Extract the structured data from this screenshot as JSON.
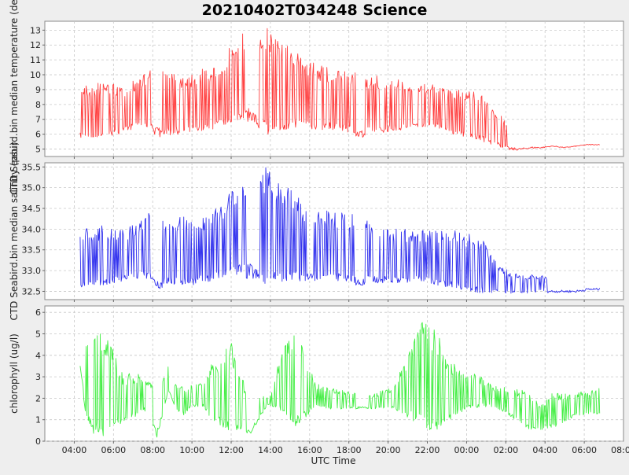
{
  "chart_data": {
    "type": "line",
    "title": "20210402T034248 Science",
    "xlabel": "UTC Time",
    "x_unit": "hours since 00:00 of first day",
    "xlim": [
      2.5,
      32.0
    ],
    "x_ticks": [
      4,
      6,
      8,
      10,
      12,
      14,
      16,
      18,
      20,
      22,
      24,
      26,
      28,
      30,
      32
    ],
    "x_tick_labels": [
      "04:00",
      "06:00",
      "08:00",
      "10:00",
      "12:00",
      "14:00",
      "16:00",
      "18:00",
      "20:00",
      "22:00",
      "00:00",
      "02:00",
      "04:00",
      "06:00",
      "08:00"
    ],
    "grid": true,
    "panels": [
      {
        "name": "temperature",
        "ylabel": "CTD Seabird.bin median temperature (degC)",
        "ylim": [
          4.5,
          13.6
        ],
        "y_ticks": [
          5,
          6,
          7,
          8,
          9,
          10,
          11,
          12,
          13
        ],
        "y_tick_labels": [
          "5",
          "6",
          "7",
          "8",
          "9",
          "10",
          "11",
          "12",
          "13"
        ],
        "color": "#ff4040",
        "series": {
          "knots_x": [
            4.3,
            4.6,
            5.0,
            5.5,
            6.0,
            6.5,
            6.9,
            7.2,
            7.5,
            7.8,
            8.2,
            8.8,
            9.2,
            9.6,
            10.0,
            10.6,
            11.0,
            11.5,
            12.0,
            12.5,
            13.0,
            13.9,
            14.1,
            14.6,
            15.2,
            15.7,
            16.3,
            16.9,
            17.5,
            18.0,
            18.7,
            19.0,
            20.3,
            20.8,
            21.5,
            22.0,
            22.5,
            23.0,
            23.6,
            24.2,
            24.8,
            25.3,
            25.8,
            26.3,
            26.8,
            27.3,
            27.8,
            28.4,
            29.0,
            29.6,
            30.2,
            30.8
          ],
          "knots_low": [
            5.7,
            5.6,
            5.7,
            5.8,
            5.9,
            6.1,
            6.3,
            6.5,
            6.5,
            6.4,
            6.2,
            5.9,
            6.0,
            6.0,
            6.0,
            6.1,
            6.3,
            6.5,
            6.8,
            7.0,
            7.4,
            5.8,
            5.9,
            6.2,
            6.4,
            6.4,
            6.3,
            6.3,
            6.2,
            6.1,
            6.0,
            6.0,
            6.2,
            6.3,
            6.5,
            6.5,
            6.4,
            6.1,
            5.9,
            5.7,
            5.5,
            5.3,
            5.1,
            5.0,
            5.0,
            5.1,
            5.1,
            5.2,
            5.1,
            5.2,
            5.3,
            5.3
          ],
          "knots_high": [
            9.3,
            9.3,
            9.4,
            9.6,
            9.5,
            9.2,
            9.5,
            9.8,
            10.1,
            10.3,
            10.3,
            10.2,
            10.2,
            10.1,
            10.2,
            10.4,
            10.6,
            11.0,
            12.2,
            12.9,
            13.1,
            13.2,
            13.0,
            12.6,
            12.0,
            11.3,
            10.8,
            10.5,
            10.4,
            10.3,
            10.2,
            10.0,
            9.8,
            9.6,
            9.5,
            9.5,
            9.2,
            9.0,
            9.0,
            9.0,
            8.7,
            8.0,
            7.2,
            6.4,
            6.0,
            5.9,
            5.8,
            5.6,
            5.5,
            5.5,
            5.5,
            5.6
          ],
          "spike_density": [
            1,
            1,
            1,
            1,
            1,
            1,
            1,
            1,
            1,
            1,
            0,
            1,
            1,
            1,
            1,
            1,
            1,
            1,
            1,
            1,
            0,
            1,
            1,
            1,
            1,
            1,
            1,
            1,
            1,
            1,
            0,
            1,
            1,
            1,
            1,
            1,
            1,
            1,
            1,
            1,
            1,
            1,
            1,
            0,
            0,
            0,
            0,
            0,
            0,
            0,
            0,
            0
          ]
        }
      },
      {
        "name": "salinity",
        "ylabel": "CTD Seabird.bin median salinity (psu)",
        "ylim": [
          32.3,
          35.6
        ],
        "y_ticks": [
          32.5,
          33.0,
          33.5,
          34.0,
          34.5,
          35.0,
          35.5
        ],
        "y_tick_labels": [
          "32.5",
          "33.0",
          "33.5",
          "34.0",
          "34.5",
          "35.0",
          "35.5"
        ],
        "color": "#3333ee",
        "series": {
          "knots_x": [
            4.3,
            4.6,
            5.0,
            5.5,
            6.0,
            6.5,
            6.9,
            7.2,
            7.5,
            7.8,
            8.2,
            8.8,
            9.2,
            9.6,
            10.0,
            10.6,
            11.0,
            11.5,
            12.0,
            12.5,
            13.0,
            13.9,
            14.1,
            14.6,
            15.2,
            15.7,
            16.3,
            16.9,
            17.5,
            18.0,
            18.7,
            19.0,
            20.3,
            20.8,
            21.5,
            22.0,
            22.5,
            23.0,
            23.6,
            24.2,
            24.8,
            25.3,
            25.8,
            26.3,
            26.8,
            27.3,
            27.8,
            28.4,
            29.0,
            29.6,
            30.2,
            30.8
          ],
          "knots_low": [
            32.55,
            32.55,
            32.6,
            32.65,
            32.7,
            32.75,
            32.8,
            32.8,
            32.8,
            32.8,
            32.7,
            32.65,
            32.65,
            32.65,
            32.65,
            32.7,
            32.75,
            32.8,
            32.85,
            32.9,
            33.0,
            32.6,
            32.65,
            32.7,
            32.75,
            32.75,
            32.75,
            32.75,
            32.75,
            32.7,
            32.7,
            32.7,
            32.7,
            32.7,
            32.75,
            32.7,
            32.65,
            32.6,
            32.55,
            32.5,
            32.45,
            32.45,
            32.45,
            32.45,
            32.45,
            32.45,
            32.5,
            32.5,
            32.5,
            32.5,
            32.55,
            32.55
          ],
          "knots_high": [
            34.05,
            34.05,
            34.05,
            34.1,
            34.05,
            34.0,
            34.1,
            34.2,
            34.3,
            34.4,
            34.4,
            34.35,
            34.35,
            34.35,
            34.35,
            34.4,
            34.5,
            34.65,
            35.0,
            35.3,
            35.4,
            35.5,
            35.45,
            35.2,
            34.9,
            34.65,
            34.5,
            34.45,
            34.4,
            34.4,
            34.35,
            34.3,
            34.05,
            34.0,
            34.0,
            34.0,
            34.0,
            34.0,
            33.95,
            33.9,
            33.75,
            33.4,
            33.1,
            32.95,
            32.9,
            32.9,
            32.9,
            32.8,
            32.7,
            32.6,
            32.55,
            32.55
          ],
          "spike_density": [
            1,
            1,
            1,
            1,
            1,
            1,
            1,
            1,
            1,
            1,
            0,
            1,
            1,
            1,
            1,
            1,
            1,
            1,
            1,
            1,
            0,
            1,
            1,
            1,
            1,
            1,
            1,
            1,
            1,
            1,
            0,
            1,
            1,
            1,
            1,
            1,
            1,
            1,
            1,
            1,
            1,
            1,
            1,
            1,
            1,
            1,
            1,
            0,
            0,
            0,
            0,
            0
          ]
        }
      },
      {
        "name": "chlorophyll",
        "ylabel": "chlorophyll (ug/l)",
        "ylim": [
          0,
          6.3
        ],
        "y_ticks": [
          0,
          1,
          2,
          3,
          4,
          5,
          6
        ],
        "y_tick_labels": [
          "0",
          "1",
          "2",
          "3",
          "4",
          "5",
          "6"
        ],
        "color": "#44ee44",
        "series": {
          "knots_x": [
            4.3,
            4.6,
            5.0,
            5.5,
            6.0,
            6.5,
            6.9,
            7.2,
            7.5,
            7.8,
            8.2,
            8.8,
            9.2,
            9.6,
            10.0,
            10.6,
            11.0,
            11.5,
            12.0,
            12.5,
            13.0,
            13.9,
            14.1,
            14.6,
            15.2,
            15.7,
            16.3,
            16.9,
            17.5,
            18.0,
            18.7,
            19.0,
            20.3,
            20.8,
            21.5,
            22.0,
            22.5,
            23.0,
            23.6,
            24.2,
            24.8,
            25.3,
            25.8,
            26.3,
            26.8,
            27.3,
            27.8,
            28.4,
            29.0,
            29.6,
            30.2,
            30.8
          ],
          "knots_low": [
            3.5,
            1.0,
            0.3,
            0.2,
            0.6,
            0.9,
            1.0,
            1.2,
            1.5,
            1.2,
            0.3,
            2.3,
            1.4,
            1.2,
            1.6,
            1.6,
            1.0,
            0.7,
            0.4,
            0.5,
            0.5,
            1.7,
            1.6,
            1.3,
            0.6,
            1.0,
            1.6,
            1.5,
            1.5,
            1.5,
            1.6,
            1.5,
            1.5,
            1.2,
            0.8,
            0.5,
            0.3,
            0.9,
            1.3,
            1.5,
            1.6,
            1.6,
            1.4,
            1.1,
            0.7,
            0.5,
            0.5,
            0.6,
            0.9,
            1.2,
            1.2,
            1.3
          ],
          "knots_high": [
            4.7,
            5.4,
            5.5,
            5.0,
            4.4,
            3.0,
            3.2,
            3.2,
            3.0,
            2.8,
            2.5,
            3.6,
            2.7,
            2.6,
            2.6,
            2.8,
            3.6,
            4.1,
            4.8,
            3.0,
            2.3,
            2.1,
            2.4,
            4.5,
            5.2,
            4.4,
            2.7,
            2.5,
            2.4,
            2.3,
            2.2,
            2.1,
            2.6,
            3.6,
            5.6,
            5.8,
            5.1,
            4.0,
            3.5,
            3.2,
            3.0,
            2.6,
            2.5,
            2.6,
            2.4,
            2.1,
            1.7,
            2.3,
            2.2,
            2.3,
            2.3,
            2.6
          ],
          "spike_density": [
            1,
            1,
            1,
            1,
            1,
            1,
            1,
            1,
            1,
            1,
            0,
            1,
            1,
            1,
            1,
            1,
            1,
            1,
            1,
            1,
            0,
            1,
            1,
            1,
            1,
            1,
            1,
            1,
            1,
            1,
            0,
            1,
            1,
            1,
            1,
            1,
            1,
            1,
            1,
            1,
            1,
            1,
            1,
            1,
            1,
            1,
            1,
            1,
            1,
            1,
            1,
            1
          ]
        }
      }
    ]
  }
}
